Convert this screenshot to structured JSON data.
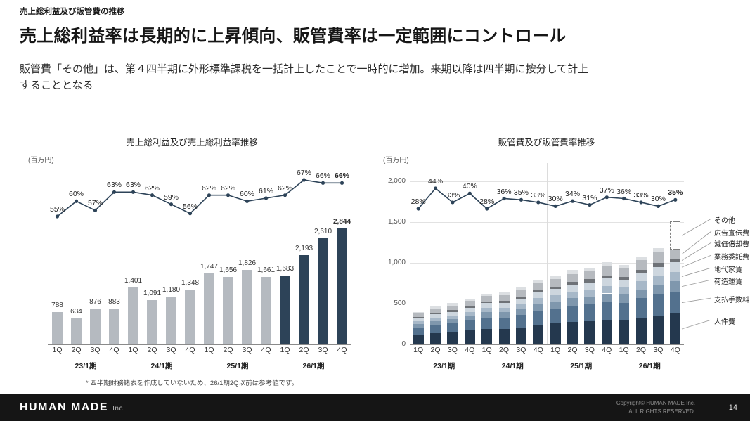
{
  "page": {
    "kicker": "売上総利益及び販管費の推移",
    "title": "売上総利益率は長期的に上昇傾向、販管費率は一定範囲にコントロール",
    "body_line1": "販管費「その他」は、第４四半期に外形標準課税を一括計上したことで一時的に増加。来期以降は四半期に按分して計上",
    "body_line2": "することとなる",
    "page_number": "14"
  },
  "footer": {
    "logo_main": "HUMAN MADE",
    "logo_sub": "Inc.",
    "copyright_line1": "Copyright© HUMAN MADE Inc.",
    "copyright_line2": "ALL RIGHTS RESERVED."
  },
  "chart_data": [
    {
      "type": "bar",
      "overlay": "line",
      "title": "売上総利益及び売上総利益率推移",
      "unit_label": "(百万円)",
      "categories": [
        "1Q",
        "2Q",
        "3Q",
        "4Q",
        "1Q",
        "2Q",
        "3Q",
        "4Q",
        "1Q",
        "2Q",
        "3Q",
        "4Q",
        "1Q",
        "2Q",
        "3Q",
        "4Q"
      ],
      "period_groups": [
        "23/1期",
        "24/1期",
        "25/1期",
        "26/1期"
      ],
      "bar_values": [
        788,
        634,
        876,
        883,
        1401,
        1091,
        1180,
        1348,
        1747,
        1656,
        1826,
        1661,
        1683,
        2193,
        2610,
        2844
      ],
      "bar_labels": [
        "788",
        "634",
        "876",
        "883",
        "1,401",
        "1,091",
        "1,180",
        "1,348",
        "1,747",
        "1,656",
        "1,826",
        "1,661",
        "1,683",
        "2,193",
        "2,610",
        "2,844"
      ],
      "line_values": [
        55,
        60,
        57,
        63,
        63,
        62,
        59,
        56,
        62,
        62,
        60,
        61,
        62,
        67,
        66,
        66
      ],
      "line_labels": [
        "55%",
        "60%",
        "57%",
        "63%",
        "63%",
        "62%",
        "59%",
        "56%",
        "62%",
        "62%",
        "60%",
        "61%",
        "62%",
        "67%",
        "66%",
        "66%"
      ],
      "highlight_from_index": 12,
      "colors": {
        "bar_default": "#b5bac0",
        "bar_highlight": "#2d4358",
        "line": "#2d4358"
      },
      "footnote": "* 四半期財務諸表を作成していないため、26/1期2Q以前は参考値です。"
    },
    {
      "type": "bar",
      "subtype": "stacked",
      "overlay": "line",
      "title": "販管費及び販管費率推移",
      "unit_label": "(百万円)",
      "categories": [
        "1Q",
        "2Q",
        "3Q",
        "4Q",
        "1Q",
        "2Q",
        "3Q",
        "4Q",
        "1Q",
        "2Q",
        "3Q",
        "4Q",
        "1Q",
        "2Q",
        "3Q",
        "4Q"
      ],
      "period_groups": [
        "23/1期",
        "24/1期",
        "25/1期",
        "26/1期"
      ],
      "ylim": [
        0,
        2000
      ],
      "yticks": [
        {
          "value": 0,
          "label": "0"
        },
        {
          "value": 500,
          "label": "500"
        },
        {
          "value": 1000,
          "label": "1,000"
        },
        {
          "value": 1500,
          "label": "1,500"
        },
        {
          "value": 2000,
          "label": "2,000"
        }
      ],
      "series": [
        {
          "name": "人件費",
          "color": "#24384e",
          "values": [
            120,
            140,
            150,
            170,
            190,
            190,
            210,
            240,
            255,
            275,
            285,
            305,
            295,
            325,
            355,
            380
          ]
        },
        {
          "name": "支払手数料",
          "color": "#53718e",
          "values": [
            90,
            100,
            110,
            125,
            140,
            140,
            155,
            175,
            185,
            200,
            210,
            220,
            215,
            240,
            260,
            265
          ]
        },
        {
          "name": "荷造運賃",
          "color": "#7f97ad",
          "values": [
            40,
            45,
            50,
            55,
            65,
            65,
            70,
            80,
            85,
            90,
            95,
            100,
            100,
            110,
            120,
            130
          ]
        },
        {
          "name": "地代家賃",
          "color": "#a7b8c8",
          "values": [
            35,
            42,
            45,
            50,
            55,
            57,
            63,
            72,
            76,
            82,
            85,
            91,
            88,
            97,
            107,
            115
          ]
        },
        {
          "name": "業務委託費",
          "color": "#cdd6de",
          "values": [
            35,
            42,
            45,
            50,
            55,
            57,
            63,
            72,
            76,
            82,
            85,
            91,
            88,
            97,
            107,
            115
          ]
        },
        {
          "name": "減価償却費",
          "color": "#6e7277",
          "values": [
            16,
            19,
            20,
            22,
            25,
            26,
            28,
            32,
            34,
            36,
            38,
            40,
            39,
            43,
            47,
            50
          ]
        },
        {
          "name": "広告宣伝費",
          "color": "#b6babf",
          "values": [
            44,
            51,
            55,
            62,
            69,
            70,
            77,
            87,
            93,
            100,
            104,
            111,
            107,
            119,
            130,
            105
          ]
        },
        {
          "name": "その他",
          "color": "#dcdfe2",
          "values": [
            20,
            26,
            30,
            26,
            26,
            30,
            34,
            37,
            41,
            45,
            41,
            52,
            43,
            49,
            59,
            350
          ]
        }
      ],
      "line_values": [
        28,
        44,
        33,
        40,
        28,
        36,
        35,
        33,
        30,
        34,
        31,
        37,
        36,
        33,
        30,
        35
      ],
      "line_labels": [
        "28%",
        "44%",
        "33%",
        "40%",
        "28%",
        "36%",
        "35%",
        "33%",
        "30%",
        "34%",
        "31%",
        "37%",
        "36%",
        "33%",
        "30%",
        "35%"
      ],
      "legend": [
        "その他",
        "広告宣伝費",
        "減価償却費",
        "業務委託費",
        "地代家賃",
        "荷造運賃",
        "支払手数料",
        "人件費"
      ],
      "line_color": "#2d4358"
    }
  ]
}
